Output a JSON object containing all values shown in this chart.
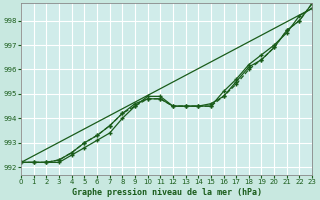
{
  "title": "Graphe pression niveau de la mer (hPa)",
  "bg_color": "#c8e8e0",
  "plot_bg_color": "#d0ecea",
  "grid_color": "#b8d8d0",
  "line_color": "#1a5c1a",
  "xlim": [
    0,
    23
  ],
  "ylim": [
    991.7,
    998.7
  ],
  "yticks": [
    992,
    993,
    994,
    995,
    996,
    997,
    998
  ],
  "xticks": [
    0,
    1,
    2,
    3,
    4,
    5,
    6,
    7,
    8,
    9,
    10,
    11,
    12,
    13,
    14,
    15,
    16,
    17,
    18,
    19,
    20,
    21,
    22,
    23
  ],
  "straight_line": [
    992.2,
    998.5
  ],
  "series1": [
    992.2,
    992.2,
    992.2,
    992.2,
    992.5,
    992.8,
    993.1,
    993.4,
    994.0,
    994.5,
    994.9,
    994.9,
    994.5,
    994.5,
    994.5,
    994.5,
    995.1,
    995.6,
    996.2,
    996.6,
    997.0,
    997.5,
    998.2,
    998.5
  ],
  "series2": [
    992.2,
    992.2,
    992.2,
    992.3,
    992.6,
    993.0,
    993.3,
    993.7,
    994.2,
    994.6,
    994.8,
    994.8,
    994.5,
    994.5,
    994.5,
    994.6,
    994.9,
    995.5,
    996.1,
    996.4,
    996.9,
    997.6,
    998.0,
    998.7
  ],
  "series3": [
    992.2,
    992.2,
    992.2,
    992.3,
    992.6,
    993.0,
    993.3,
    993.7,
    994.2,
    994.5,
    994.8,
    994.8,
    994.5,
    994.5,
    994.5,
    994.5,
    994.9,
    995.4,
    996.0,
    996.4,
    996.9,
    997.6,
    998.0,
    998.7
  ]
}
